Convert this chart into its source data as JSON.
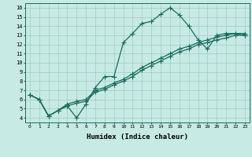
{
  "xlabel": "Humidex (Indice chaleur)",
  "xlim": [
    -0.5,
    23.5
  ],
  "ylim": [
    3.5,
    16.5
  ],
  "xticks": [
    0,
    1,
    2,
    3,
    4,
    5,
    6,
    7,
    8,
    9,
    10,
    11,
    12,
    13,
    14,
    15,
    16,
    17,
    18,
    19,
    20,
    21,
    22,
    23
  ],
  "yticks": [
    4,
    5,
    6,
    7,
    8,
    9,
    10,
    11,
    12,
    13,
    14,
    15,
    16
  ],
  "bg_color": "#c8eae4",
  "line_color": "#1a6b5e",
  "grid_color": "#99ccc4",
  "line1_y": [
    6.5,
    6.0,
    4.2,
    4.8,
    5.3,
    4.0,
    5.5,
    7.3,
    8.5,
    8.5,
    12.2,
    13.2,
    14.3,
    14.5,
    15.3,
    16.0,
    15.2,
    14.0,
    12.5,
    11.5,
    13.0,
    13.2,
    13.2,
    13.0
  ],
  "line2_y": [
    6.5,
    6.0,
    4.2,
    4.8,
    5.5,
    5.8,
    6.0,
    7.0,
    7.3,
    7.8,
    8.2,
    8.8,
    9.5,
    10.0,
    10.5,
    11.0,
    11.5,
    11.8,
    12.2,
    12.5,
    12.8,
    13.0,
    13.2,
    13.2
  ],
  "line3_y": [
    6.5,
    6.0,
    4.2,
    4.8,
    5.3,
    5.6,
    5.8,
    6.8,
    7.1,
    7.6,
    8.0,
    8.5,
    9.2,
    9.7,
    10.2,
    10.7,
    11.2,
    11.5,
    12.0,
    12.2,
    12.5,
    12.7,
    13.0,
    13.0
  ]
}
